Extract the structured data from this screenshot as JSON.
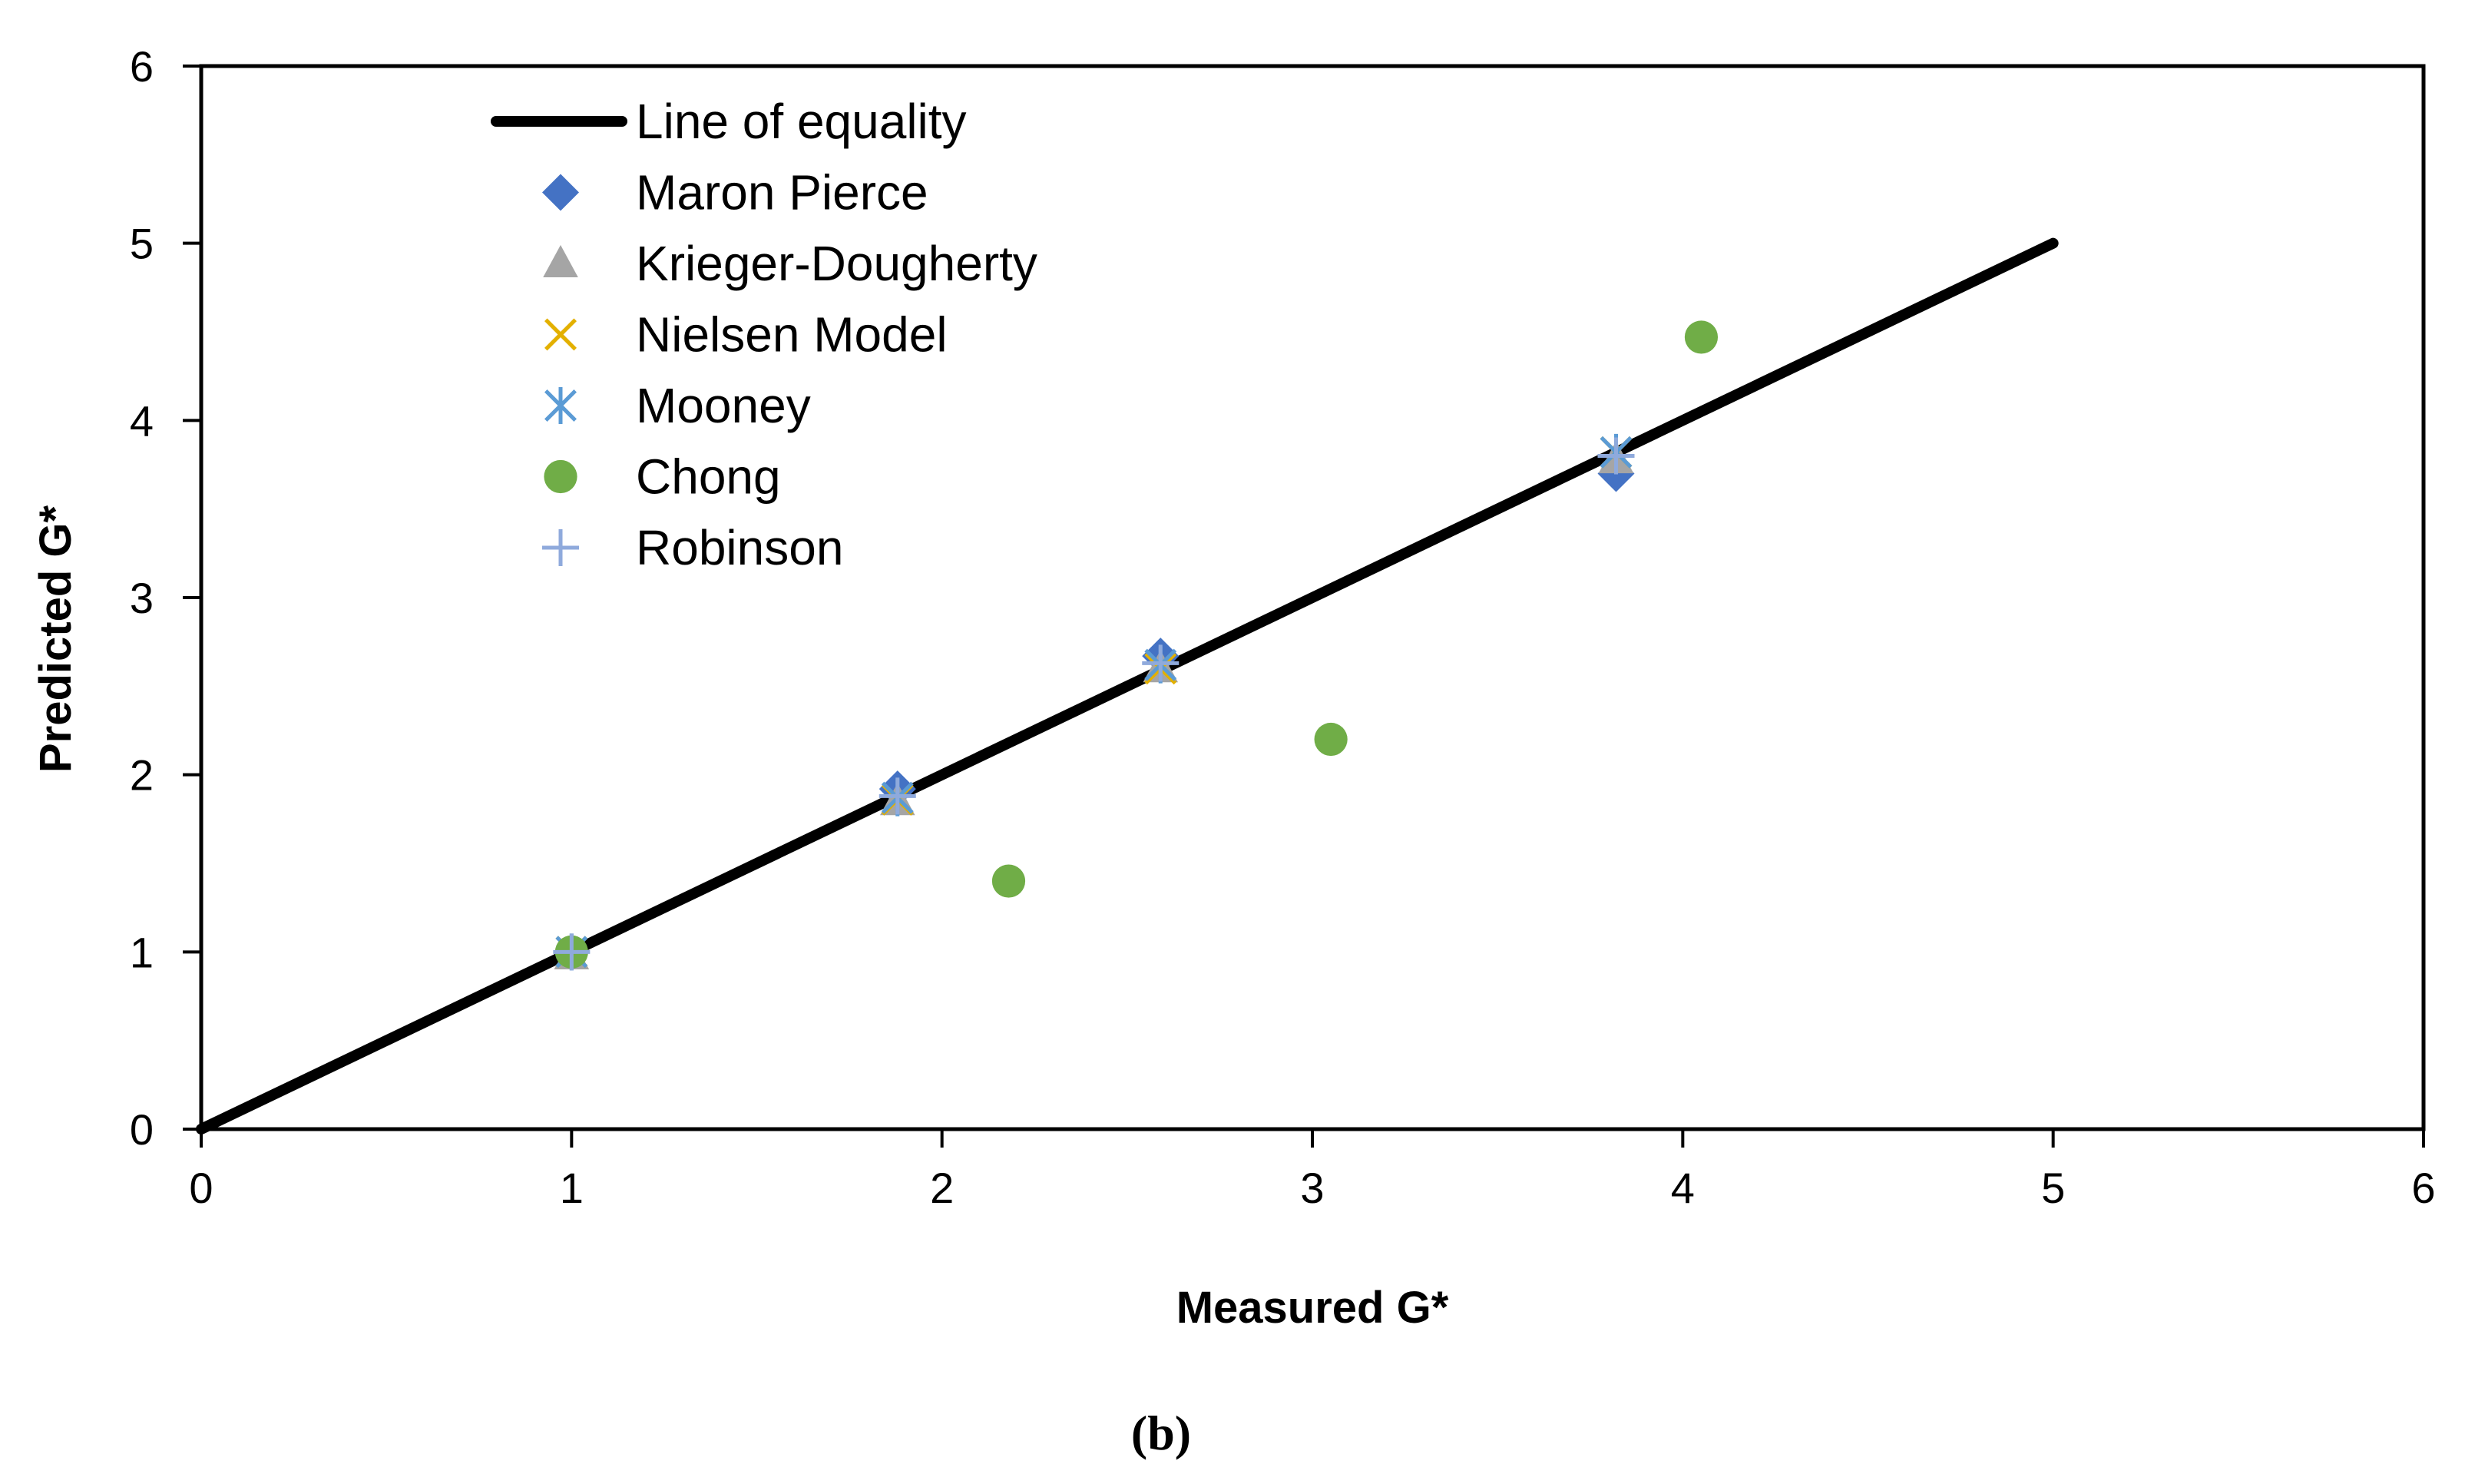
{
  "chart_data": {
    "type": "scatter",
    "title": "",
    "xlabel": "Measured G*",
    "ylabel": "Predicted G*",
    "xlim": [
      0,
      6
    ],
    "ylim": [
      0,
      6
    ],
    "x_ticks": [
      0,
      1,
      2,
      3,
      4,
      5,
      6
    ],
    "y_ticks": [
      0,
      1,
      2,
      3,
      4,
      5,
      6
    ],
    "grid": false,
    "legend_position": "top-left",
    "caption": "(b)",
    "line_of_equality": {
      "name": "Line of equality",
      "color": "#000000",
      "x": [
        0,
        5
      ],
      "y": [
        0,
        5
      ]
    },
    "series": [
      {
        "name": "Maron Pierce",
        "marker": "diamond",
        "color": "#4472C4",
        "x": [
          1.0,
          1.88,
          2.59,
          3.82
        ],
        "y": [
          1.0,
          1.92,
          2.67,
          3.7
        ]
      },
      {
        "name": "Krieger-Dougherty",
        "marker": "triangle",
        "color": "#A5A5A5",
        "x": [
          1.0,
          1.88,
          2.59,
          3.82
        ],
        "y": [
          0.98,
          1.85,
          2.6,
          3.78
        ]
      },
      {
        "name": "Nielsen Model",
        "marker": "x",
        "color": "#E3B000",
        "x": [
          1.0,
          1.88,
          2.59,
          3.82
        ],
        "y": [
          1.0,
          1.86,
          2.6,
          3.82
        ]
      },
      {
        "name": "Mooney",
        "marker": "asterisk",
        "color": "#5B9BD5",
        "x": [
          1.0,
          1.88,
          2.59,
          3.82
        ],
        "y": [
          1.0,
          1.87,
          2.62,
          3.82
        ]
      },
      {
        "name": "Chong",
        "marker": "circle",
        "color": "#70AD47",
        "x": [
          1.0,
          2.18,
          3.05,
          4.05
        ],
        "y": [
          1.0,
          1.4,
          2.2,
          4.47
        ]
      },
      {
        "name": "Robinson",
        "marker": "plus",
        "color": "#8FAADC",
        "x": [
          1.0,
          1.88,
          2.59,
          3.82
        ],
        "y": [
          1.0,
          1.88,
          2.63,
          3.8
        ]
      }
    ]
  }
}
